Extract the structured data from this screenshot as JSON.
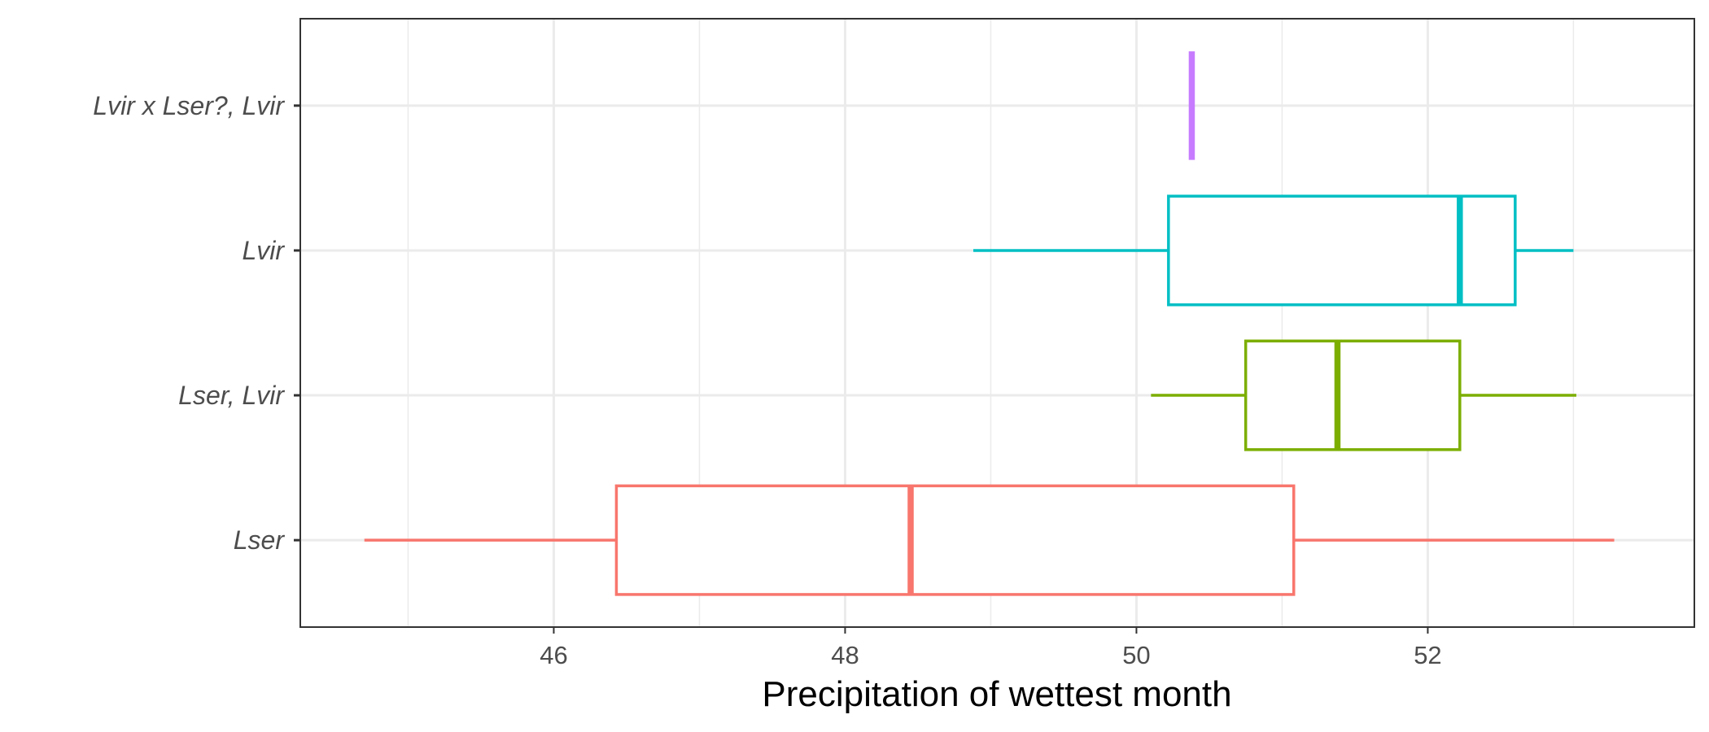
{
  "chart_data": {
    "type": "boxplot",
    "orientation": "horizontal",
    "xlabel": "Precipitation of wettest month",
    "ylabel": "",
    "xlim": [
      44.26,
      53.83
    ],
    "x_ticks_major": [
      46,
      48,
      50,
      52
    ],
    "x_ticks_minor": [
      45,
      47,
      49,
      51,
      53
    ],
    "x_tick_labels": [
      "46",
      "48",
      "50",
      "52"
    ],
    "grid": true,
    "legend": "none",
    "categories": [
      "Lser",
      "Lser, Lvir",
      "Lvir",
      "Lvir x Lser?, Lvir"
    ],
    "series": [
      {
        "category": "Lser",
        "color": "#F8766D",
        "min": 44.7,
        "q1": 46.43,
        "median": 48.45,
        "q3": 51.08,
        "max": 53.28
      },
      {
        "category": "Lser, Lvir",
        "color": "#7CAE00",
        "min": 50.1,
        "q1": 50.75,
        "median": 51.38,
        "q3": 52.22,
        "max": 53.02
      },
      {
        "category": "Lvir",
        "color": "#00BFC4",
        "min": 48.88,
        "q1": 50.22,
        "median": 52.22,
        "q3": 52.6,
        "max": 53.0
      },
      {
        "category": "Lvir x Lser?, Lvir",
        "color": "#C77CFF",
        "min": 50.38,
        "q1": 50.38,
        "median": 50.38,
        "q3": 50.38,
        "max": 50.38
      }
    ]
  }
}
